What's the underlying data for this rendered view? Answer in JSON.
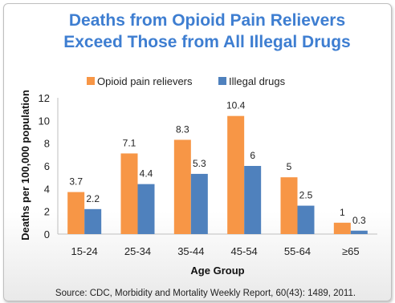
{
  "chart_data": {
    "type": "bar",
    "title": [
      "Deaths from Opioid Pain Relievers",
      "Exceed Those from All Illegal Drugs"
    ],
    "xlabel": "Age Group",
    "ylabel": "Deaths per 100,000 population",
    "ylim": [
      0,
      12
    ],
    "yticks": [
      "0",
      "2",
      "4",
      "6",
      "8",
      "10",
      "12"
    ],
    "categories": [
      "15-24",
      "25-34",
      "35-44",
      "45-54",
      "55-64",
      "≥65"
    ],
    "series": [
      {
        "name": "Opioid pain relievers",
        "color": "#f79646",
        "values": [
          3.7,
          7.1,
          8.3,
          10.4,
          5,
          1
        ]
      },
      {
        "name": "Illegal drugs",
        "color": "#4f81bd",
        "values": [
          2.2,
          4.4,
          5.3,
          6,
          2.5,
          0.3
        ]
      }
    ],
    "legend": "top",
    "grid": false,
    "source": "Source: CDC, Morbidity and Mortality Weekly Report, 60(43): 1489, 2011."
  }
}
